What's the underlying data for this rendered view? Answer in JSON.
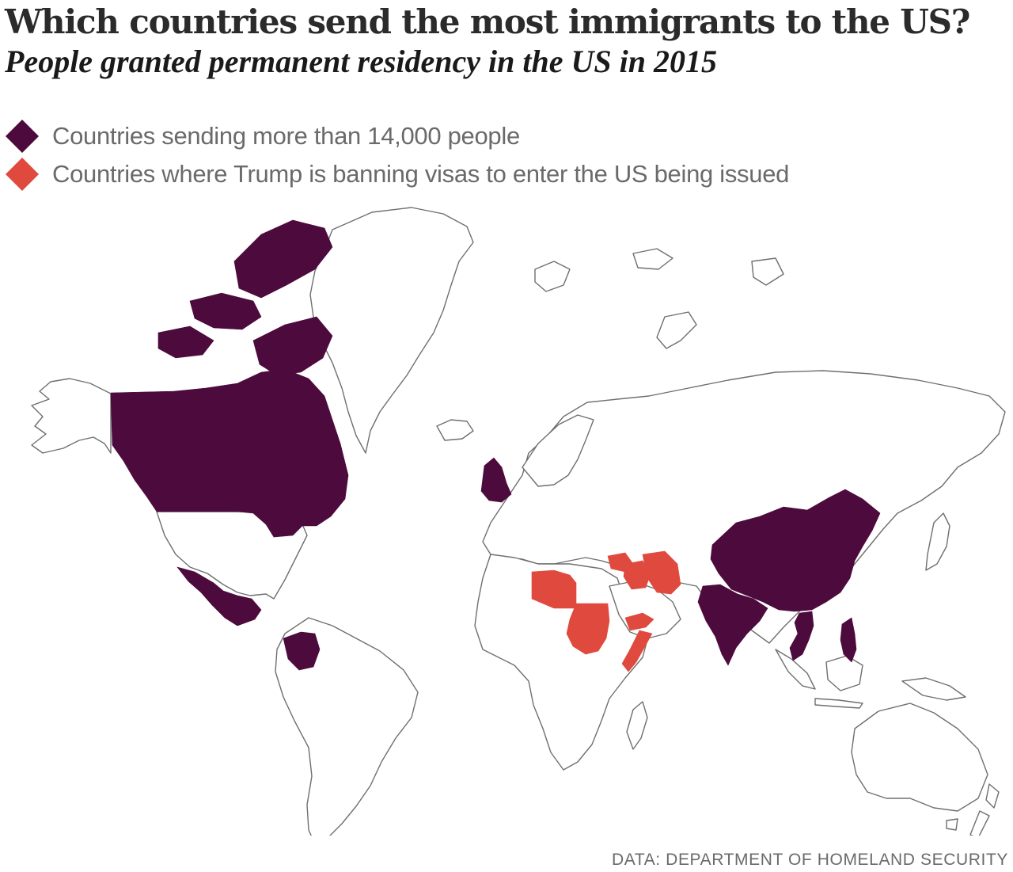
{
  "header": {
    "title": "Which countries send the most immigrants to the US?",
    "subtitle": "People granted permanent residency in the US in 2015"
  },
  "legend": {
    "items": [
      {
        "label": "Countries sending more than 14,000 people",
        "color": "#4d0a3c",
        "shape": "diamond"
      },
      {
        "label": "Countries where Trump is banning visas to enter the US being issued",
        "color": "#e04a3e",
        "shape": "diamond"
      }
    ]
  },
  "map": {
    "land_fill": "#ffffff",
    "outline_color": "#6f6f6f",
    "highlighted_groups": [
      {
        "group": "more-than-14000",
        "color": "#4d0a3c",
        "countries": [
          "Canada",
          "Mexico",
          "Colombia",
          "United Kingdom",
          "China",
          "India",
          "Vietnam",
          "Philippines"
        ]
      },
      {
        "group": "visa-ban",
        "color": "#e04a3e",
        "countries": [
          "Libya",
          "Sudan",
          "Somalia",
          "Yemen",
          "Syria",
          "Iraq",
          "Iran"
        ]
      }
    ]
  },
  "source": "DATA: DEPARTMENT OF HOMELAND SECURITY"
}
